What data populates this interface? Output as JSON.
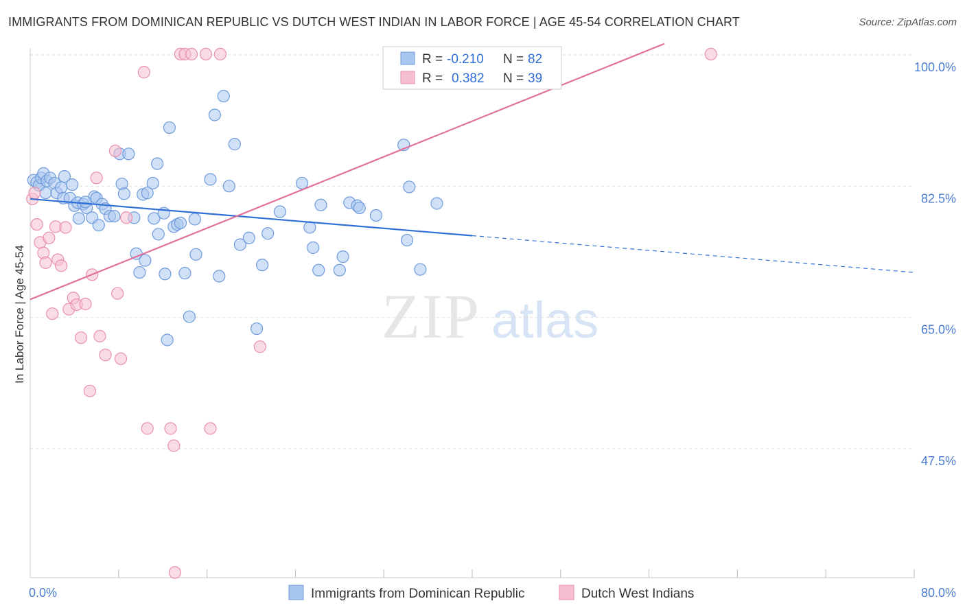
{
  "title": "IMMIGRANTS FROM DOMINICAN REPUBLIC VS DUTCH WEST INDIAN IN LABOR FORCE | AGE 45-54 CORRELATION CHART",
  "source": "Source: ZipAtlas.com",
  "watermark": {
    "zip": "ZIP",
    "atlas": "atlas"
  },
  "chart_data": {
    "type": "scatter",
    "title": "IMMIGRANTS FROM DOMINICAN REPUBLIC VS DUTCH WEST INDIAN IN LABOR FORCE | AGE 45-54 CORRELATION CHART",
    "xlabel": "",
    "ylabel": "In Labor Force | Age 45-54",
    "xlim": [
      0,
      80
    ],
    "ylim": [
      30,
      102
    ],
    "x_tick_labels": [
      "0.0%",
      "80.0%"
    ],
    "y_ticks": [
      {
        "value": 100.0,
        "label": "100.0%"
      },
      {
        "value": 82.5,
        "label": "82.5%"
      },
      {
        "value": 65.0,
        "label": "65.0%"
      },
      {
        "value": 47.5,
        "label": "47.5%"
      }
    ],
    "colors": {
      "blue_fill": "#a9c6ef",
      "blue_stroke": "#6f9bdc",
      "blue_line": "#2f6fd6",
      "pink_fill": "#f6bfd0",
      "pink_stroke": "#e98fae",
      "pink_line": "#e0709a",
      "grid": "#dddddd",
      "tick_text": "#4a7bd0"
    },
    "legend": {
      "series1": {
        "r_label": "R =",
        "r_value": "-0.210",
        "n_label": "N =",
        "n_value": "82"
      },
      "series2": {
        "r_label": "R =",
        "r_value": "0.382",
        "n_label": "N =",
        "n_value": "39"
      }
    },
    "series": [
      {
        "name": "Immigrants from Dominican Republic",
        "color": "#a9c6ef",
        "trend": {
          "x0": 0,
          "y0": 80.8,
          "x1": 40,
          "y1": 75.9,
          "dash_to_x": 80,
          "dash_to_y": 71.0
        },
        "points": [
          [
            0.3,
            83.3
          ],
          [
            0.6,
            83.0
          ],
          [
            0.8,
            82.6
          ],
          [
            1.0,
            83.6
          ],
          [
            1.2,
            84.2
          ],
          [
            1.4,
            81.6
          ],
          [
            1.5,
            83.2
          ],
          [
            1.8,
            83.6
          ],
          [
            2.2,
            82.9
          ],
          [
            2.4,
            81.6
          ],
          [
            2.8,
            82.3
          ],
          [
            3.0,
            80.9
          ],
          [
            3.1,
            83.8
          ],
          [
            3.6,
            80.9
          ],
          [
            3.8,
            82.7
          ],
          [
            4.0,
            79.9
          ],
          [
            4.3,
            80.3
          ],
          [
            4.4,
            78.2
          ],
          [
            4.8,
            80.1
          ],
          [
            5.1,
            79.6
          ],
          [
            5.6,
            78.3
          ],
          [
            5.8,
            81.1
          ],
          [
            6.0,
            80.9
          ],
          [
            6.2,
            77.3
          ],
          [
            6.5,
            80.1
          ],
          [
            6.8,
            79.5
          ],
          [
            7.2,
            78.5
          ],
          [
            7.6,
            78.5
          ],
          [
            8.1,
            86.8
          ],
          [
            8.3,
            82.8
          ],
          [
            8.5,
            81.5
          ],
          [
            8.9,
            86.8
          ],
          [
            9.4,
            78.3
          ],
          [
            9.6,
            73.5
          ],
          [
            9.9,
            71.0
          ],
          [
            10.2,
            81.4
          ],
          [
            10.4,
            72.6
          ],
          [
            10.6,
            81.6
          ],
          [
            11.1,
            82.9
          ],
          [
            11.2,
            78.2
          ],
          [
            11.5,
            85.5
          ],
          [
            11.6,
            76.1
          ],
          [
            12.1,
            78.9
          ],
          [
            12.2,
            70.8
          ],
          [
            12.6,
            90.3
          ],
          [
            13.0,
            77.1
          ],
          [
            13.3,
            77.4
          ],
          [
            13.6,
            77.6
          ],
          [
            14.0,
            70.9
          ],
          [
            14.4,
            65.1
          ],
          [
            14.9,
            78.1
          ],
          [
            15.0,
            73.4
          ],
          [
            16.3,
            83.4
          ],
          [
            16.7,
            92.0
          ],
          [
            17.1,
            70.5
          ],
          [
            17.5,
            94.5
          ],
          [
            18.0,
            82.5
          ],
          [
            18.5,
            88.1
          ],
          [
            19.0,
            74.7
          ],
          [
            19.8,
            75.6
          ],
          [
            20.5,
            63.5
          ],
          [
            21.0,
            72.0
          ],
          [
            21.5,
            76.2
          ],
          [
            22.6,
            79.1
          ],
          [
            24.6,
            82.9
          ],
          [
            25.3,
            77.0
          ],
          [
            25.6,
            74.3
          ],
          [
            26.1,
            71.3
          ],
          [
            26.3,
            80.0
          ],
          [
            28.0,
            71.3
          ],
          [
            28.3,
            73.1
          ],
          [
            28.9,
            80.3
          ],
          [
            29.6,
            79.9
          ],
          [
            29.8,
            79.6
          ],
          [
            31.3,
            78.6
          ],
          [
            34.1,
            75.3
          ],
          [
            33.8,
            88.0
          ],
          [
            34.3,
            82.4
          ],
          [
            35.3,
            71.4
          ],
          [
            36.8,
            80.2
          ],
          [
            12.4,
            62.0
          ],
          [
            5.0,
            80.4
          ]
        ]
      },
      {
        "name": "Dutch West Indians",
        "color": "#f6bfd0",
        "trend": {
          "x0": 0,
          "y0": 67.4,
          "x1": 57.4,
          "y1": 101.5
        },
        "points": [
          [
            0.2,
            80.8
          ],
          [
            0.4,
            81.6
          ],
          [
            0.6,
            77.4
          ],
          [
            0.9,
            75.0
          ],
          [
            1.2,
            73.6
          ],
          [
            1.4,
            72.3
          ],
          [
            1.7,
            75.6
          ],
          [
            2.0,
            65.5
          ],
          [
            2.3,
            77.1
          ],
          [
            2.5,
            72.7
          ],
          [
            2.8,
            71.9
          ],
          [
            3.2,
            77.0
          ],
          [
            3.5,
            66.1
          ],
          [
            3.9,
            67.6
          ],
          [
            4.2,
            66.7
          ],
          [
            4.6,
            62.3
          ],
          [
            5.0,
            66.8
          ],
          [
            5.4,
            55.2
          ],
          [
            5.6,
            70.7
          ],
          [
            6.0,
            83.6
          ],
          [
            6.3,
            62.5
          ],
          [
            6.8,
            60.0
          ],
          [
            7.7,
            87.2
          ],
          [
            7.9,
            68.2
          ],
          [
            8.2,
            59.5
          ],
          [
            8.7,
            78.3
          ],
          [
            10.3,
            97.7
          ],
          [
            10.6,
            50.2
          ],
          [
            12.7,
            50.2
          ],
          [
            13.0,
            47.9
          ],
          [
            13.1,
            31.0
          ],
          [
            13.6,
            100.1
          ],
          [
            14.0,
            100.1
          ],
          [
            14.6,
            100.1
          ],
          [
            15.9,
            100.1
          ],
          [
            16.3,
            50.2
          ],
          [
            17.2,
            100.1
          ],
          [
            20.8,
            61.1
          ],
          [
            61.6,
            100.1
          ]
        ]
      }
    ]
  },
  "bottom_legend": {
    "item1": "Immigrants from Dominican Republic",
    "item2": "Dutch West Indians"
  }
}
